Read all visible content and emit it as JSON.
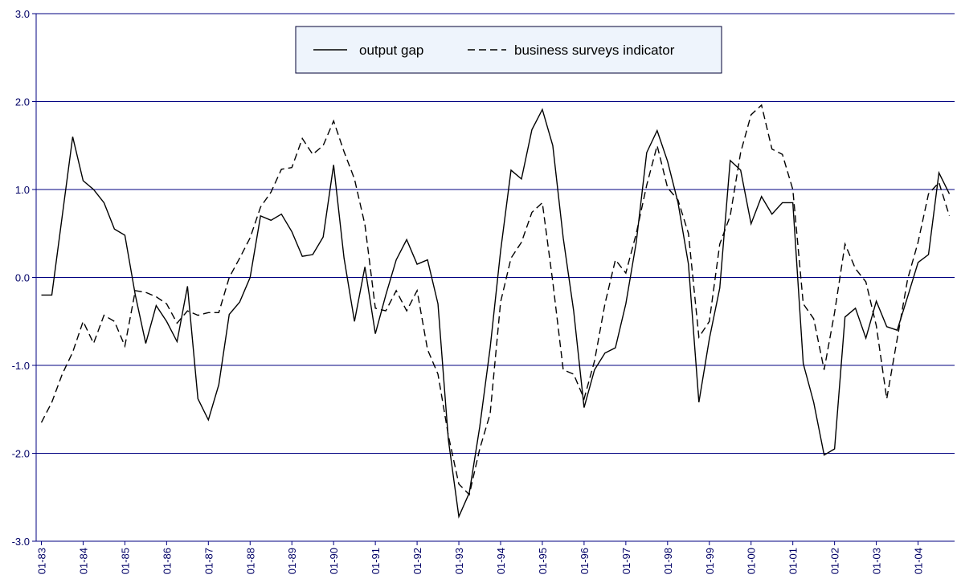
{
  "chart_data": {
    "type": "line",
    "categories": [
      "01-83",
      null,
      null,
      null,
      "01-84",
      null,
      null,
      null,
      "01-85",
      null,
      null,
      null,
      "01-86",
      null,
      null,
      null,
      "01-87",
      null,
      null,
      null,
      "01-88",
      null,
      null,
      null,
      "01-89",
      null,
      null,
      null,
      "01-90",
      null,
      null,
      null,
      "01-91",
      null,
      null,
      null,
      "01-92",
      null,
      null,
      null,
      "01-93",
      null,
      null,
      null,
      "01-94",
      null,
      null,
      null,
      "01-95",
      null,
      null,
      null,
      "01-96",
      null,
      null,
      null,
      "01-97",
      null,
      null,
      null,
      "01-98",
      null,
      null,
      null,
      "01-99",
      null,
      null,
      null,
      "01-00",
      null,
      null,
      null,
      "01-01",
      null,
      null,
      null,
      "01-02",
      null,
      null,
      null,
      "01-03",
      null,
      null,
      null,
      "01-04",
      null,
      null,
      null
    ],
    "series": [
      {
        "name": "output gap",
        "color": "#000000",
        "dashed": false,
        "values": [
          -0.2,
          -0.2,
          0.7,
          1.6,
          1.1,
          1.0,
          0.85,
          0.55,
          0.48,
          -0.2,
          -0.75,
          -0.32,
          -0.5,
          -0.73,
          -0.1,
          -1.38,
          -1.62,
          -1.22,
          -0.42,
          -0.28,
          0.0,
          0.7,
          0.65,
          0.72,
          0.52,
          0.24,
          0.26,
          0.46,
          1.28,
          0.22,
          -0.5,
          0.12,
          -0.64,
          -0.2,
          0.2,
          0.43,
          0.15,
          0.2,
          -0.3,
          -1.85,
          -2.72,
          -2.45,
          -1.7,
          -0.8,
          0.3,
          1.22,
          1.12,
          1.68,
          1.91,
          1.5,
          0.45,
          -0.38,
          -1.48,
          -1.05,
          -0.86,
          -0.8,
          -0.3,
          0.4,
          1.42,
          1.67,
          1.32,
          0.85,
          0.15,
          -1.42,
          -0.7,
          -0.12,
          1.33,
          1.22,
          0.61,
          0.92,
          0.72,
          0.85,
          0.85,
          -0.98,
          -1.42,
          -2.02,
          -1.95,
          -0.45,
          -0.35,
          -0.69,
          -0.27,
          -0.56,
          -0.6,
          -0.22,
          0.17,
          0.26,
          1.19,
          0.95
        ]
      },
      {
        "name": "business surveys indicator",
        "color": "#000000",
        "dashed": true,
        "values": [
          -1.65,
          -1.42,
          -1.1,
          -0.85,
          -0.5,
          -0.75,
          -0.43,
          -0.5,
          -0.78,
          -0.15,
          -0.17,
          -0.22,
          -0.3,
          -0.52,
          -0.38,
          -0.43,
          -0.4,
          -0.4,
          0.0,
          0.22,
          0.45,
          0.8,
          0.97,
          1.23,
          1.25,
          1.58,
          1.4,
          1.5,
          1.78,
          1.43,
          1.12,
          0.6,
          -0.35,
          -0.38,
          -0.15,
          -0.38,
          -0.15,
          -0.82,
          -1.1,
          -1.8,
          -2.35,
          -2.47,
          -1.95,
          -1.55,
          -0.28,
          0.22,
          0.4,
          0.74,
          0.85,
          -0.05,
          -1.05,
          -1.1,
          -1.38,
          -0.95,
          -0.3,
          0.2,
          0.05,
          0.5,
          1.05,
          1.5,
          1.02,
          0.88,
          0.5,
          -0.68,
          -0.5,
          0.38,
          0.7,
          1.42,
          1.85,
          1.96,
          1.46,
          1.4,
          1.0,
          -0.3,
          -0.47,
          -1.05,
          -0.4,
          0.38,
          0.1,
          -0.05,
          -0.55,
          -1.38,
          -0.7,
          -0.02,
          0.4,
          0.95,
          1.08,
          0.7
        ]
      }
    ],
    "ylim": [
      -3,
      3
    ],
    "yticks": [
      {
        "value": 3,
        "label": "3.0"
      },
      {
        "value": 2,
        "label": "2.0"
      },
      {
        "value": 1,
        "label": "1.0"
      },
      {
        "value": 0,
        "label": "0.0"
      },
      {
        "value": -1,
        "label": "-1.0"
      },
      {
        "value": -2,
        "label": "-2.0"
      },
      {
        "value": -3,
        "label": "-3.0"
      }
    ],
    "grid": true,
    "grid_color": "#000080",
    "axis_color": "#000080",
    "legend": "top",
    "legend_background": "#eef4fc"
  }
}
